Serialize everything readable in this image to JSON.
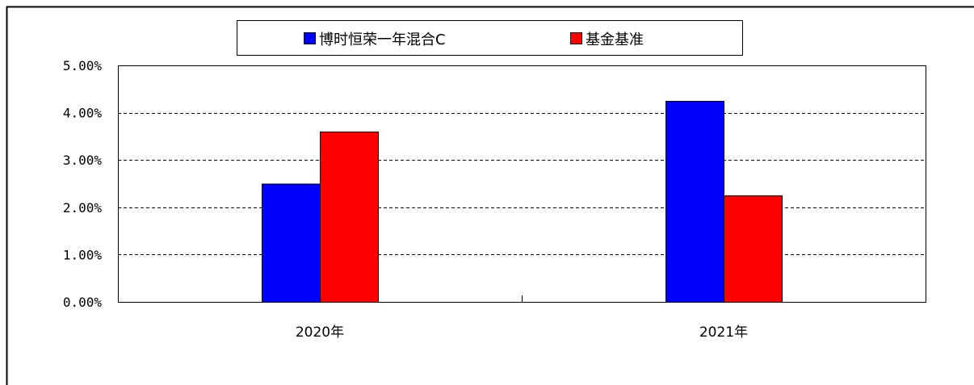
{
  "chart_data": {
    "type": "bar",
    "categories": [
      "2020年",
      "2021年"
    ],
    "series": [
      {
        "name": "博时恒荣一年混合C",
        "values": [
          2.5,
          4.25
        ],
        "color": "#0000ff"
      },
      {
        "name": "基金基准",
        "values": [
          3.6,
          2.25
        ],
        "color": "#ff0000"
      }
    ],
    "ylim": [
      0,
      5
    ],
    "yticks": [
      0,
      1,
      2,
      3,
      4,
      5
    ],
    "ytick_labels": [
      "0.00%",
      "1.00%",
      "2.00%",
      "3.00%",
      "4.00%",
      "5.00%"
    ],
    "grid": true,
    "legend_position": "top-center",
    "title": "",
    "xlabel": "",
    "ylabel": ""
  }
}
